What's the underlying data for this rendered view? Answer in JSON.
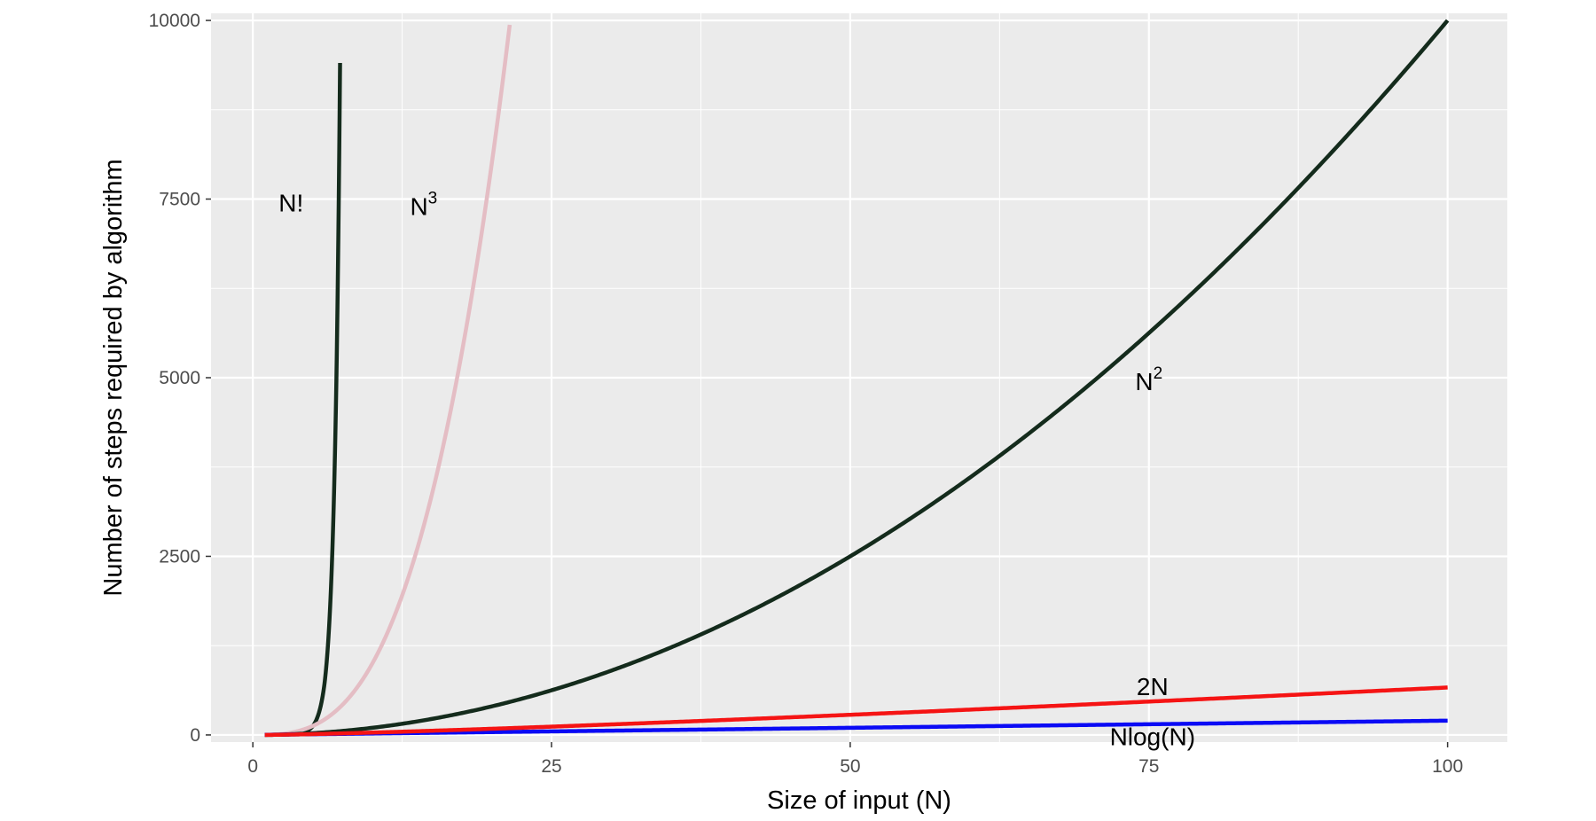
{
  "chart_data": {
    "type": "line",
    "xlabel": "Size of input (N)",
    "ylabel": "Number of steps required by algorithm",
    "xlim": [
      -3.5,
      105
    ],
    "ylim": [
      -100,
      10100
    ],
    "x_ticks": [
      0,
      25,
      50,
      75,
      100
    ],
    "x_tick_labels": [
      "0",
      "25",
      "50",
      "75",
      "100"
    ],
    "y_ticks": [
      0,
      2500,
      5000,
      7500,
      10000
    ],
    "y_tick_labels": [
      "0",
      "2500",
      "5000",
      "7500",
      "10000"
    ],
    "grid": true,
    "background": "#ebebeb",
    "series": [
      {
        "name": "N!",
        "formula": "factorial",
        "x_range": [
          1,
          7.3
        ],
        "color": "#142b1c"
      },
      {
        "name": "N^3",
        "formula": "cube",
        "x_range": [
          1,
          21.5
        ],
        "color": "#e4bdc4"
      },
      {
        "name": "N^2",
        "formula": "square",
        "x_range": [
          1,
          100
        ],
        "color": "#142b1c"
      },
      {
        "name": "2N",
        "formula": "double",
        "x_range": [
          1,
          100
        ],
        "color": "#0a0af5"
      },
      {
        "name": "Nlog(N)",
        "formula": "nlogn",
        "x_range": [
          1,
          100
        ],
        "color": "#f51414"
      }
    ],
    "annotations": [
      {
        "id": "factorial",
        "text": "N!",
        "sup": "",
        "x": 3.2,
        "y": 7450
      },
      {
        "id": "cube",
        "text": "N",
        "sup": "3",
        "x": 14.3,
        "y": 7400
      },
      {
        "id": "square",
        "text": "N",
        "sup": "2",
        "x": 75,
        "y": 4950
      },
      {
        "id": "double",
        "text": "2N",
        "sup": "",
        "x": 75.3,
        "y": 680
      },
      {
        "id": "nlogn",
        "text": "Nlog(N)",
        "sup": "",
        "x": 75.3,
        "y": -20
      }
    ]
  }
}
